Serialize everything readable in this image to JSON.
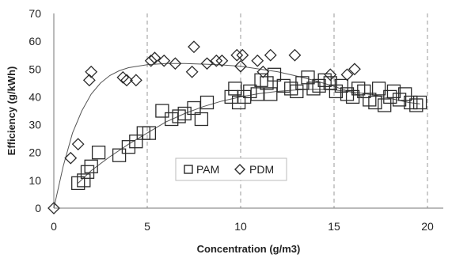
{
  "chart_data": {
    "type": "scatter",
    "title": "",
    "xlabel": "Concentration (g/m3)",
    "ylabel": "Efficiency   (g/kWh)",
    "xlim": [
      0,
      20
    ],
    "ylim": [
      0,
      70
    ],
    "x_ticks": [
      "0",
      "5",
      "10",
      "15",
      "20"
    ],
    "y_ticks": [
      "0",
      "10",
      "20",
      "30",
      "40",
      "50",
      "60",
      "70"
    ],
    "grid": "vertical dashed",
    "legend_position": "inside-bottom-center",
    "series": [
      {
        "name": "PAM",
        "marker": "square",
        "color": "#2b2b2b",
        "points": [
          [
            1.3,
            9
          ],
          [
            1.6,
            10
          ],
          [
            1.8,
            13
          ],
          [
            2.0,
            15
          ],
          [
            2.4,
            20
          ],
          [
            3.5,
            19
          ],
          [
            4.0,
            22
          ],
          [
            4.4,
            24
          ],
          [
            4.8,
            27
          ],
          [
            5.1,
            27
          ],
          [
            5.8,
            35
          ],
          [
            6.3,
            32
          ],
          [
            6.7,
            33
          ],
          [
            7.0,
            34
          ],
          [
            7.5,
            36
          ],
          [
            7.9,
            32
          ],
          [
            8.2,
            38
          ],
          [
            9.5,
            40
          ],
          [
            9.7,
            43
          ],
          [
            9.9,
            38
          ],
          [
            10.2,
            40
          ],
          [
            10.5,
            42
          ],
          [
            10.9,
            41
          ],
          [
            11.1,
            46
          ],
          [
            11.4,
            45
          ],
          [
            11.6,
            41
          ],
          [
            11.8,
            48
          ],
          [
            12.3,
            44
          ],
          [
            12.7,
            43
          ],
          [
            13.0,
            42
          ],
          [
            13.3,
            45
          ],
          [
            13.6,
            47
          ],
          [
            13.9,
            43
          ],
          [
            14.2,
            44
          ],
          [
            14.5,
            46
          ],
          [
            14.8,
            45
          ],
          [
            15.1,
            42
          ],
          [
            15.4,
            44
          ],
          [
            15.7,
            41
          ],
          [
            16.0,
            40
          ],
          [
            16.3,
            43
          ],
          [
            16.6,
            42
          ],
          [
            16.9,
            39
          ],
          [
            17.2,
            38
          ],
          [
            17.4,
            43
          ],
          [
            17.7,
            37
          ],
          [
            18.0,
            40
          ],
          [
            18.2,
            42
          ],
          [
            18.5,
            39
          ],
          [
            18.8,
            41
          ],
          [
            19.1,
            38
          ],
          [
            19.4,
            37
          ],
          [
            19.6,
            38
          ]
        ]
      },
      {
        "name": "PDM",
        "marker": "diamond",
        "color": "#2b2b2b",
        "points": [
          [
            0.0,
            0
          ],
          [
            0.9,
            18
          ],
          [
            1.3,
            23
          ],
          [
            1.9,
            46
          ],
          [
            2.0,
            49
          ],
          [
            3.7,
            47
          ],
          [
            3.9,
            46
          ],
          [
            4.4,
            46
          ],
          [
            5.2,
            53
          ],
          [
            5.4,
            54
          ],
          [
            5.9,
            53
          ],
          [
            6.5,
            52
          ],
          [
            7.4,
            49
          ],
          [
            7.5,
            58
          ],
          [
            8.2,
            52
          ],
          [
            8.7,
            53
          ],
          [
            9.0,
            53
          ],
          [
            9.8,
            55
          ],
          [
            10.0,
            51
          ],
          [
            10.1,
            55
          ],
          [
            10.9,
            53
          ],
          [
            11.2,
            49
          ],
          [
            11.6,
            55
          ],
          [
            12.9,
            55
          ],
          [
            14.8,
            48
          ],
          [
            15.7,
            48
          ],
          [
            16.1,
            50
          ]
        ]
      }
    ],
    "trendlines": [
      {
        "series": "PDM",
        "points": [
          [
            0,
            0
          ],
          [
            0.5,
            15
          ],
          [
            1,
            27
          ],
          [
            1.5,
            35
          ],
          [
            2,
            41
          ],
          [
            2.5,
            45
          ],
          [
            3,
            47.7
          ],
          [
            3.5,
            49.4
          ],
          [
            4,
            50.5
          ],
          [
            5,
            51.6
          ],
          [
            6,
            52
          ],
          [
            7,
            52
          ],
          [
            8,
            51.8
          ],
          [
            9,
            51.5
          ],
          [
            10,
            51
          ],
          [
            11,
            50
          ],
          [
            12,
            49
          ],
          [
            13,
            47.5
          ],
          [
            14,
            45.8
          ],
          [
            15,
            43.8
          ],
          [
            16,
            41.5
          ],
          [
            16.5,
            40
          ]
        ]
      },
      {
        "series": "PAM",
        "points": [
          [
            1.3,
            9
          ],
          [
            2,
            13.5
          ],
          [
            3,
            18.5
          ],
          [
            4,
            23
          ],
          [
            5,
            27
          ],
          [
            6,
            31
          ],
          [
            7,
            34
          ],
          [
            8,
            36.5
          ],
          [
            9,
            38.5
          ],
          [
            10,
            40
          ],
          [
            11,
            41.2
          ],
          [
            12,
            42
          ],
          [
            13,
            42.5
          ],
          [
            14,
            42.7
          ],
          [
            15,
            42.5
          ],
          [
            16,
            41.8
          ],
          [
            17,
            40.8
          ],
          [
            18,
            39.5
          ],
          [
            19,
            38
          ],
          [
            19.6,
            37.5
          ]
        ]
      }
    ]
  }
}
